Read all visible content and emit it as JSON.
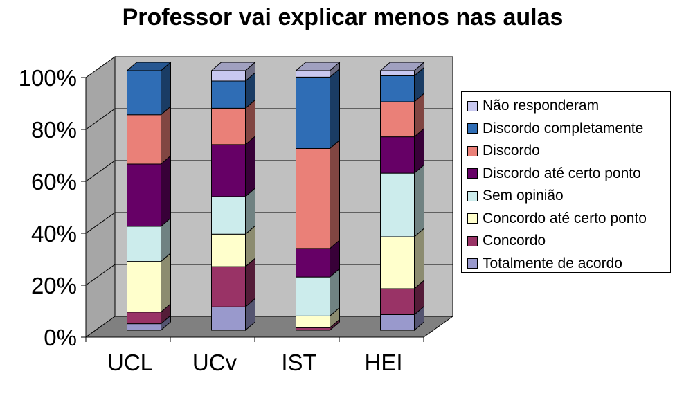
{
  "chart_data": {
    "type": "bar",
    "stacked": true,
    "percent_stacked": true,
    "three_d": true,
    "title": "Professor vai explicar menos nas aulas",
    "categories": [
      "UCL",
      "UCv",
      "IST",
      "HEI"
    ],
    "ylim": [
      0,
      100
    ],
    "yticks": [
      "0%",
      "20%",
      "40%",
      "60%",
      "80%",
      "100%"
    ],
    "grid": true,
    "legend_position": "right",
    "series": [
      {
        "name": "Totalmente de acordo",
        "color": "#9999CC",
        "values": [
          2.5,
          9,
          0,
          6
        ]
      },
      {
        "name": "Concordo",
        "color": "#993366",
        "values": [
          4.5,
          15.5,
          1,
          10
        ]
      },
      {
        "name": "Concordo até certo ponto",
        "color": "#FFFFCC",
        "values": [
          19.5,
          12.5,
          4.5,
          20
        ]
      },
      {
        "name": "Sem opinião",
        "color": "#CCECEC",
        "values": [
          13.5,
          14.5,
          15,
          24.5
        ]
      },
      {
        "name": "Discordo até certo ponto",
        "color": "#660066",
        "values": [
          24,
          20,
          11,
          14
        ]
      },
      {
        "name": "Discordo",
        "color": "#EA8078",
        "values": [
          19,
          14,
          38.5,
          13.5
        ]
      },
      {
        "name": "Discordo completamente",
        "color": "#2F6DB5",
        "values": [
          17,
          10.5,
          27.5,
          10
        ]
      },
      {
        "name": "Não responderam",
        "color": "#C8C8F0",
        "values": [
          0,
          4,
          2.5,
          2
        ]
      }
    ]
  }
}
